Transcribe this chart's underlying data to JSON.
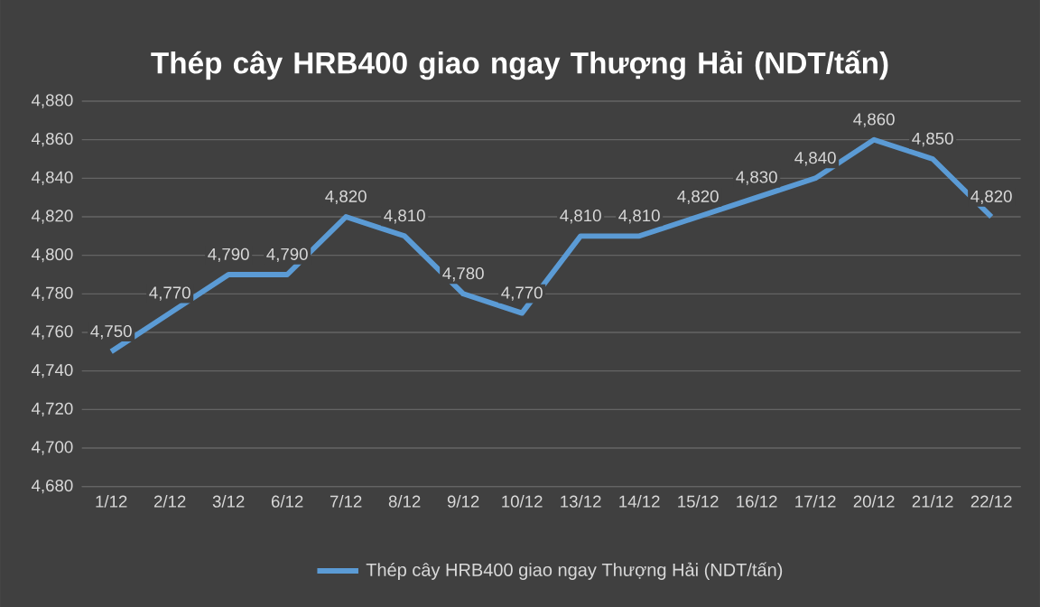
{
  "chart_data": {
    "type": "line",
    "title": "Thép cây HRB400 giao ngay Thượng Hải (NDT/tấn)",
    "categories": [
      "1/12",
      "2/12",
      "3/12",
      "6/12",
      "7/12",
      "8/12",
      "9/12",
      "10/12",
      "13/12",
      "14/12",
      "15/12",
      "16/12",
      "17/12",
      "20/12",
      "21/12",
      "22/12"
    ],
    "series": [
      {
        "name": "Thép cây HRB400 giao ngay Thượng Hải (NDT/tấn)",
        "color": "#5b9bd5",
        "values": [
          4750,
          4770,
          4790,
          4790,
          4820,
          4810,
          4780,
          4770,
          4810,
          4810,
          4820,
          4830,
          4840,
          4860,
          4850,
          4820
        ],
        "value_labels": [
          "4,750",
          "4,770",
          "4,790",
          "4,790",
          "4,820",
          "4,810",
          "4,780",
          "4,770",
          "4,810",
          "4,810",
          "4,820",
          "4,830",
          "4,840",
          "4,860",
          "4,850",
          "4,820"
        ]
      }
    ],
    "ylim": [
      4680,
      4880
    ],
    "yticks": [
      {
        "value": 4680,
        "label": "4,680"
      },
      {
        "value": 4700,
        "label": "4,700"
      },
      {
        "value": 4720,
        "label": "4,720"
      },
      {
        "value": 4740,
        "label": "4,740"
      },
      {
        "value": 4760,
        "label": "4,760"
      },
      {
        "value": 4780,
        "label": "4,780"
      },
      {
        "value": 4800,
        "label": "4,800"
      },
      {
        "value": 4820,
        "label": "4,820"
      },
      {
        "value": 4840,
        "label": "4,840"
      },
      {
        "value": 4860,
        "label": "4,860"
      },
      {
        "value": 4880,
        "label": "4,880"
      }
    ],
    "grid": "y",
    "legend": "bottom",
    "marker": "none",
    "line_style": "solid"
  }
}
